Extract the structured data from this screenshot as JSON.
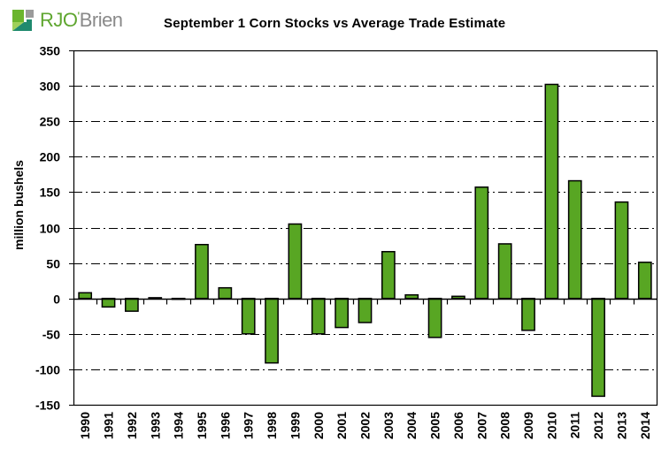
{
  "logo": {
    "brand_primary": "RJO",
    "brand_secondary": "Brien",
    "apostrophe": "'"
  },
  "chart_data": {
    "type": "bar",
    "title": "September 1 Corn Stocks vs Average Trade Estimate",
    "xlabel": "",
    "ylabel": "million bushels",
    "ylim": [
      -150,
      350
    ],
    "yticks": [
      -150,
      -100,
      -50,
      0,
      50,
      100,
      150,
      200,
      250,
      300,
      350
    ],
    "grid": "horizontal dash-dot",
    "legend": "none",
    "bar_color": "#58a623",
    "categories": [
      "1990",
      "1991",
      "1992",
      "1993",
      "1994",
      "1995",
      "1996",
      "1997",
      "1998",
      "1999",
      "2000",
      "2001",
      "2002",
      "2003",
      "2004",
      "2005",
      "2006",
      "2007",
      "2008",
      "2009",
      "2010",
      "2011",
      "2012",
      "2013",
      "2014"
    ],
    "values": [
      8,
      -12,
      -18,
      1,
      -1,
      76,
      15,
      -50,
      -91,
      105,
      -50,
      -41,
      -34,
      66,
      5,
      -55,
      3,
      157,
      77,
      -45,
      302,
      166,
      -138,
      136,
      51
    ]
  }
}
